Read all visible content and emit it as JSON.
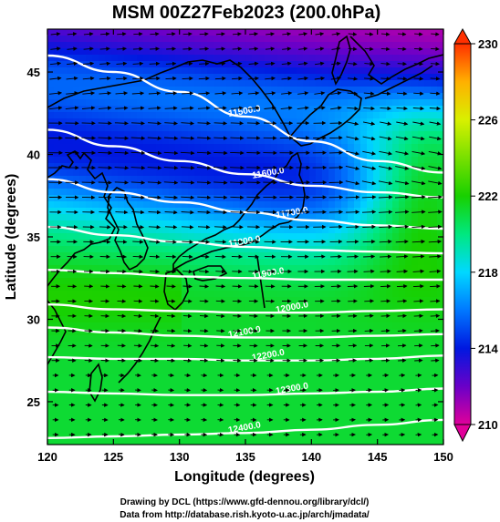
{
  "chart_data": {
    "type": "heatmap",
    "title": "MSM 00Z27Feb2023 (200.0hPa)",
    "xlabel": "Longitude (degrees)",
    "ylabel": "Latitude  (degrees)",
    "xlim": [
      120,
      150
    ],
    "ylim": [
      22.4,
      47.6
    ],
    "x_ticks": [
      "120",
      "125",
      "130",
      "135",
      "140",
      "145",
      "150"
    ],
    "y_ticks": [
      "25",
      "30",
      "35",
      "40",
      "45"
    ],
    "colorbar": {
      "range": [
        210,
        230
      ],
      "ticks": [
        "210",
        "214",
        "218",
        "222",
        "226",
        "230"
      ],
      "colors": [
        "#e0009a",
        "#6a00c8",
        "#0018e0",
        "#0078ff",
        "#00d8ff",
        "#00e880",
        "#18d000",
        "#78e000",
        "#d8f000",
        "#ffb000",
        "#ff3000"
      ]
    },
    "contours": [
      {
        "label": "11500.0",
        "values": [
          [
            120,
            46.0
          ],
          [
            125,
            45.0
          ],
          [
            130,
            43.8
          ],
          [
            135,
            42.3
          ],
          [
            140,
            40.8
          ],
          [
            145,
            39.6
          ],
          [
            150,
            38.9
          ]
        ]
      },
      {
        "label": "11600.0",
        "values": [
          [
            120,
            41.5
          ],
          [
            125,
            40.5
          ],
          [
            130,
            39.6
          ],
          [
            135,
            38.8
          ],
          [
            140,
            38.1
          ],
          [
            145,
            37.7
          ],
          [
            150,
            37.4
          ]
        ]
      },
      {
        "label": "11700.0",
        "values": [
          [
            120,
            38.5
          ],
          [
            125,
            37.7
          ],
          [
            130,
            37.1
          ],
          [
            135,
            36.5
          ],
          [
            140,
            36.0
          ],
          [
            145,
            35.7
          ],
          [
            150,
            35.5
          ]
        ]
      },
      {
        "label": "11800.0",
        "values": [
          [
            120,
            35.6
          ],
          [
            125,
            35.1
          ],
          [
            130,
            34.7
          ],
          [
            135,
            34.4
          ],
          [
            140,
            34.2
          ],
          [
            145,
            34.1
          ],
          [
            150,
            34.0
          ]
        ]
      },
      {
        "label": "11900.0",
        "values": [
          [
            120,
            33.0
          ],
          [
            125,
            32.8
          ],
          [
            130,
            32.6
          ],
          [
            135,
            32.5
          ],
          [
            140,
            32.4
          ],
          [
            145,
            32.4
          ],
          [
            150,
            32.4
          ]
        ]
      },
      {
        "label": "12000.0",
        "values": [
          [
            120,
            30.9
          ],
          [
            125,
            30.6
          ],
          [
            130,
            30.5
          ],
          [
            135,
            30.4
          ],
          [
            140,
            30.4
          ],
          [
            145,
            30.5
          ],
          [
            150,
            30.6
          ]
        ]
      },
      {
        "label": "12100.0",
        "values": [
          [
            120,
            29.5
          ],
          [
            125,
            29.2
          ],
          [
            130,
            29.0
          ],
          [
            135,
            28.9
          ],
          [
            140,
            28.9
          ],
          [
            145,
            29.0
          ],
          [
            150,
            29.1
          ]
        ]
      },
      {
        "label": "12200.0",
        "values": [
          [
            120,
            27.7
          ],
          [
            125,
            27.6
          ],
          [
            130,
            27.6
          ],
          [
            135,
            27.5
          ],
          [
            140,
            27.5
          ],
          [
            145,
            27.6
          ],
          [
            150,
            27.8
          ]
        ]
      },
      {
        "label": "12300.0",
        "values": [
          [
            120,
            25.6
          ],
          [
            125,
            25.5
          ],
          [
            130,
            25.4
          ],
          [
            135,
            25.4
          ],
          [
            140,
            25.5
          ],
          [
            145,
            25.6
          ],
          [
            150,
            25.8
          ]
        ]
      },
      {
        "label": "12400.0",
        "values": [
          [
            120,
            22.8
          ],
          [
            125,
            22.9
          ],
          [
            130,
            23.0
          ],
          [
            135,
            23.1
          ],
          [
            140,
            23.3
          ],
          [
            145,
            23.6
          ],
          [
            150,
            23.9
          ]
        ]
      }
    ],
    "wind_vectors": "uniform westerly flow, strongest north of 30N",
    "credits": [
      "Drawing by DCL (https://www.gfd-dennou.org/library/dcl/)",
      "Data from http://database.rish.kyoto-u.ac.jp/arch/jmadata/"
    ]
  }
}
